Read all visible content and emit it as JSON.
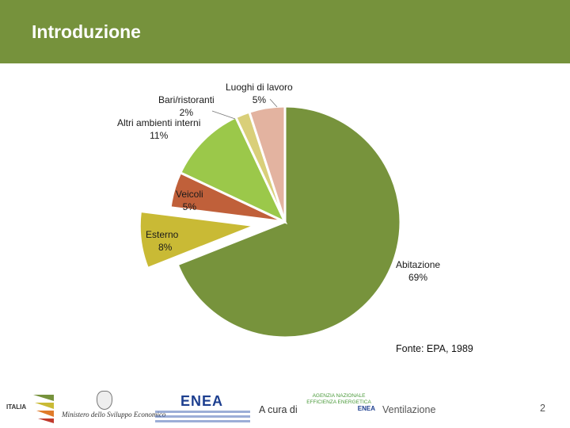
{
  "header": {
    "title": "Introduzione"
  },
  "colors": {
    "header_bg": "#76923c",
    "Abitazione": "#77933c",
    "Esterno": "#c9ba35",
    "Veicoli": "#c0603a",
    "Altri ambienti interni": "#9bc84a",
    "Bari/ristoranti": "#d9cf79",
    "Luoghi di lavoro": "#e3b3a0"
  },
  "chart_data": {
    "type": "pie",
    "title": "",
    "start": "12 o'clock, clockwise",
    "exploded": [
      "Esterno"
    ],
    "slices": [
      {
        "name": "Abitazione",
        "value": 69,
        "label": "Abitazione",
        "pct": "69%"
      },
      {
        "name": "Esterno",
        "value": 8,
        "label": "Esterno",
        "pct": "8%"
      },
      {
        "name": "Veicoli",
        "value": 5,
        "label": "Veicoli",
        "pct": "5%"
      },
      {
        "name": "Altri ambienti interni",
        "value": 11,
        "label": "Altri ambienti interni",
        "pct": "11%"
      },
      {
        "name": "Bari/ristoranti",
        "value": 2,
        "label": "Bari/ristoranti",
        "pct": "2%"
      },
      {
        "name": "Luoghi di lavoro",
        "value": 5,
        "label": "Luoghi di lavoro",
        "pct": "5%"
      }
    ]
  },
  "source_note": "Fonte: EPA, 1989",
  "footer": {
    "italia_logo_text": "ITALIA",
    "ministry": "Ministero dello Sviluppo Economico",
    "enea": "ENEA",
    "credit": "A cura di",
    "agenzia_lines": [
      "AGENZIA NAZIONALE",
      "EFFICIENZA ENERGETICA"
    ],
    "agenzia_enea": "ENEA",
    "section": "Ventilazione",
    "page_number": "2"
  }
}
